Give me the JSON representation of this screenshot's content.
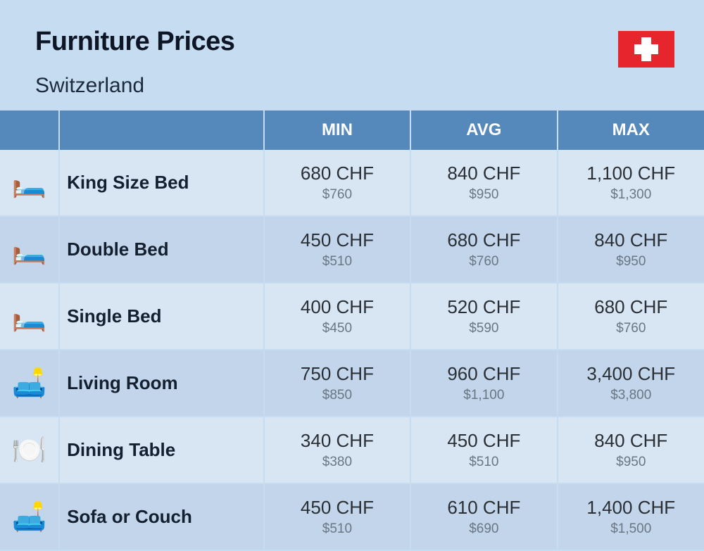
{
  "header": {
    "title": "Furniture Prices",
    "country": "Switzerland"
  },
  "flag": {
    "bg_color": "#e6252d",
    "cross_color": "#ffffff"
  },
  "table": {
    "columns": {
      "min": "MIN",
      "avg": "AVG",
      "max": "MAX"
    },
    "header_bg": "#5588bb",
    "header_text_color": "#ffffff",
    "row_colors": [
      "#d8e5f3",
      "#c2d5ea"
    ],
    "chf_color": "#2a2f36",
    "usd_color": "#6a7684",
    "rows": [
      {
        "icon": "🛏️",
        "name": "King Size Bed",
        "min_chf": "680 CHF",
        "min_usd": "$760",
        "avg_chf": "840 CHF",
        "avg_usd": "$950",
        "max_chf": "1,100 CHF",
        "max_usd": "$1,300"
      },
      {
        "icon": "🛏️",
        "name": "Double Bed",
        "min_chf": "450 CHF",
        "min_usd": "$510",
        "avg_chf": "680 CHF",
        "avg_usd": "$760",
        "max_chf": "840 CHF",
        "max_usd": "$950"
      },
      {
        "icon": "🛏️",
        "name": "Single Bed",
        "min_chf": "400 CHF",
        "min_usd": "$450",
        "avg_chf": "520 CHF",
        "avg_usd": "$590",
        "max_chf": "680 CHF",
        "max_usd": "$760"
      },
      {
        "icon": "🛋️",
        "name": "Living Room",
        "min_chf": "750 CHF",
        "min_usd": "$850",
        "avg_chf": "960 CHF",
        "avg_usd": "$1,100",
        "max_chf": "3,400 CHF",
        "max_usd": "$3,800"
      },
      {
        "icon": "🍽️",
        "name": "Dining Table",
        "min_chf": "340 CHF",
        "min_usd": "$380",
        "avg_chf": "450 CHF",
        "avg_usd": "$510",
        "max_chf": "840 CHF",
        "max_usd": "$950"
      },
      {
        "icon": "🛋️",
        "name": "Sofa or Couch",
        "min_chf": "450 CHF",
        "min_usd": "$510",
        "avg_chf": "610 CHF",
        "avg_usd": "$690",
        "max_chf": "1,400 CHF",
        "max_usd": "$1,500"
      }
    ]
  }
}
